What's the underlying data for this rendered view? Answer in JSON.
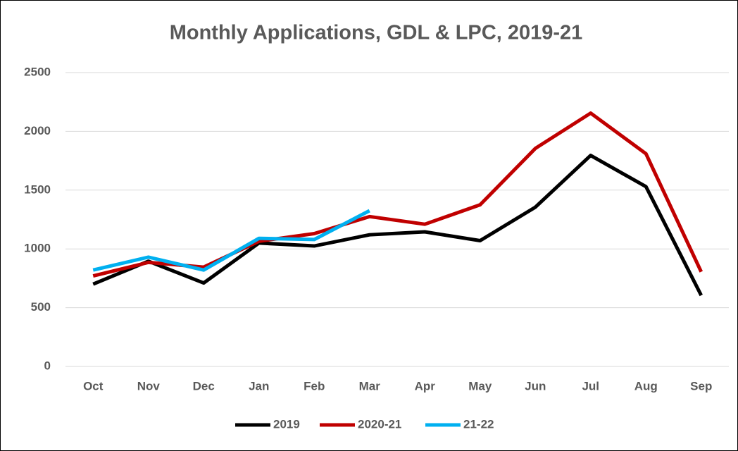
{
  "chart_data": {
    "type": "line",
    "title": "Monthly Applications, GDL & LPC, 2019-21",
    "categories": [
      "Oct",
      "Nov",
      "Dec",
      "Jan",
      "Feb",
      "Mar",
      "Apr",
      "May",
      "Jun",
      "Jul",
      "Aug",
      "Sep"
    ],
    "series": [
      {
        "name": "2019",
        "color": "#000000",
        "values": [
          700,
          895,
          710,
          1050,
          1025,
          1120,
          1145,
          1070,
          1355,
          1795,
          1530,
          605
        ]
      },
      {
        "name": "2020-21",
        "color": "#c00000",
        "values": [
          770,
          885,
          845,
          1065,
          1130,
          1275,
          1210,
          1375,
          1855,
          2155,
          1810,
          805
        ]
      },
      {
        "name": "21-22",
        "color": "#00b0f0",
        "values": [
          820,
          930,
          820,
          1090,
          1080,
          1325,
          null,
          null,
          null,
          null,
          null,
          null
        ]
      }
    ],
    "ylim": [
      0,
      2500
    ],
    "yticks": [
      0,
      500,
      1000,
      1500,
      2000,
      2500
    ],
    "grid": true,
    "legend": "bottom"
  }
}
